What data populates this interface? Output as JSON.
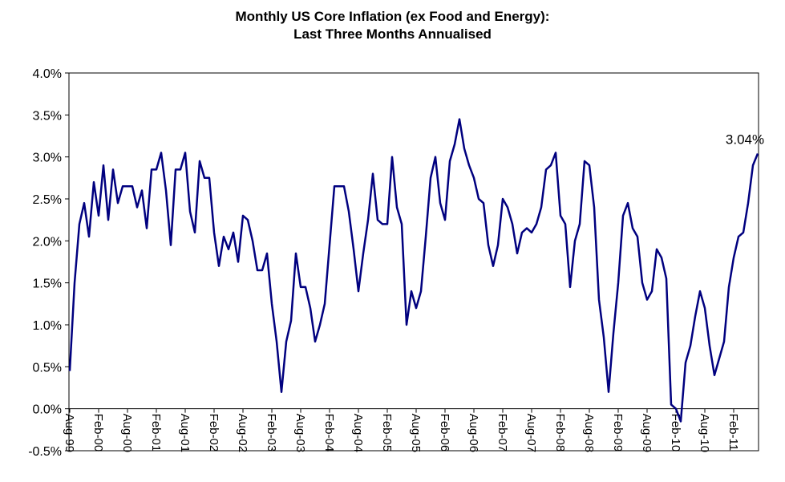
{
  "chart_data": {
    "type": "line",
    "title": "Monthly US Core Inflation (ex Food and Energy):",
    "subtitle": "Last Three Months Annualised",
    "xlabel": "",
    "ylabel": "",
    "ylim": [
      -0.5,
      4.0
    ],
    "y_ticks": [
      "-0.5%",
      "0.0%",
      "0.5%",
      "1.0%",
      "1.5%",
      "2.0%",
      "2.5%",
      "3.0%",
      "3.5%",
      "4.0%"
    ],
    "x_ticks": [
      "Aug-99",
      "Feb-00",
      "Aug-00",
      "Feb-01",
      "Aug-01",
      "Feb-02",
      "Aug-02",
      "Feb-03",
      "Aug-03",
      "Feb-04",
      "Aug-04",
      "Feb-05",
      "Aug-05",
      "Feb-06",
      "Aug-06",
      "Feb-07",
      "Aug-07",
      "Feb-08",
      "Aug-08",
      "Feb-09",
      "Aug-09",
      "Feb-10",
      "Aug-10",
      "Feb-11"
    ],
    "x_start": "Aug-99",
    "grid": false,
    "line_color": "#00007f",
    "annotation": "3.04%",
    "series": [
      {
        "values": [
          0.45,
          1.5,
          2.2,
          2.45,
          2.05,
          2.7,
          2.3,
          2.9,
          2.25,
          2.85,
          2.45,
          2.65,
          2.65,
          2.65,
          2.4,
          2.6,
          2.15,
          2.85,
          2.85,
          3.05,
          2.6,
          1.95,
          2.85,
          2.85,
          3.05,
          2.35,
          2.1,
          2.95,
          2.75,
          2.75,
          2.1,
          1.7,
          2.05,
          1.9,
          2.1,
          1.75,
          2.3,
          2.25,
          2.0,
          1.65,
          1.65,
          1.85,
          1.25,
          0.8,
          0.2,
          0.8,
          1.05,
          1.85,
          1.45,
          1.45,
          1.2,
          0.8,
          1.0,
          1.25,
          1.95,
          2.65,
          2.65,
          2.65,
          2.35,
          1.9,
          1.4,
          1.85,
          2.25,
          2.8,
          2.25,
          2.2,
          2.2,
          3.0,
          2.4,
          2.2,
          1.0,
          1.4,
          1.2,
          1.4,
          2.05,
          2.75,
          3.0,
          2.45,
          2.25,
          2.95,
          3.15,
          3.45,
          3.1,
          2.9,
          2.75,
          2.5,
          2.45,
          1.95,
          1.7,
          1.95,
          2.5,
          2.4,
          2.2,
          1.85,
          2.1,
          2.15,
          2.1,
          2.2,
          2.4,
          2.85,
          2.9,
          3.05,
          2.3,
          2.2,
          1.45,
          2.0,
          2.2,
          2.95,
          2.9,
          2.4,
          1.3,
          0.85,
          0.2,
          0.9,
          1.5,
          2.3,
          2.45,
          2.15,
          2.05,
          1.5,
          1.3,
          1.4,
          1.9,
          1.8,
          1.55,
          0.05,
          0.0,
          -0.15,
          0.55,
          0.75,
          1.1,
          1.4,
          1.2,
          0.75,
          0.4,
          0.6,
          0.8,
          1.45,
          1.8,
          2.05,
          2.1,
          2.45,
          2.9,
          3.04
        ]
      }
    ]
  }
}
